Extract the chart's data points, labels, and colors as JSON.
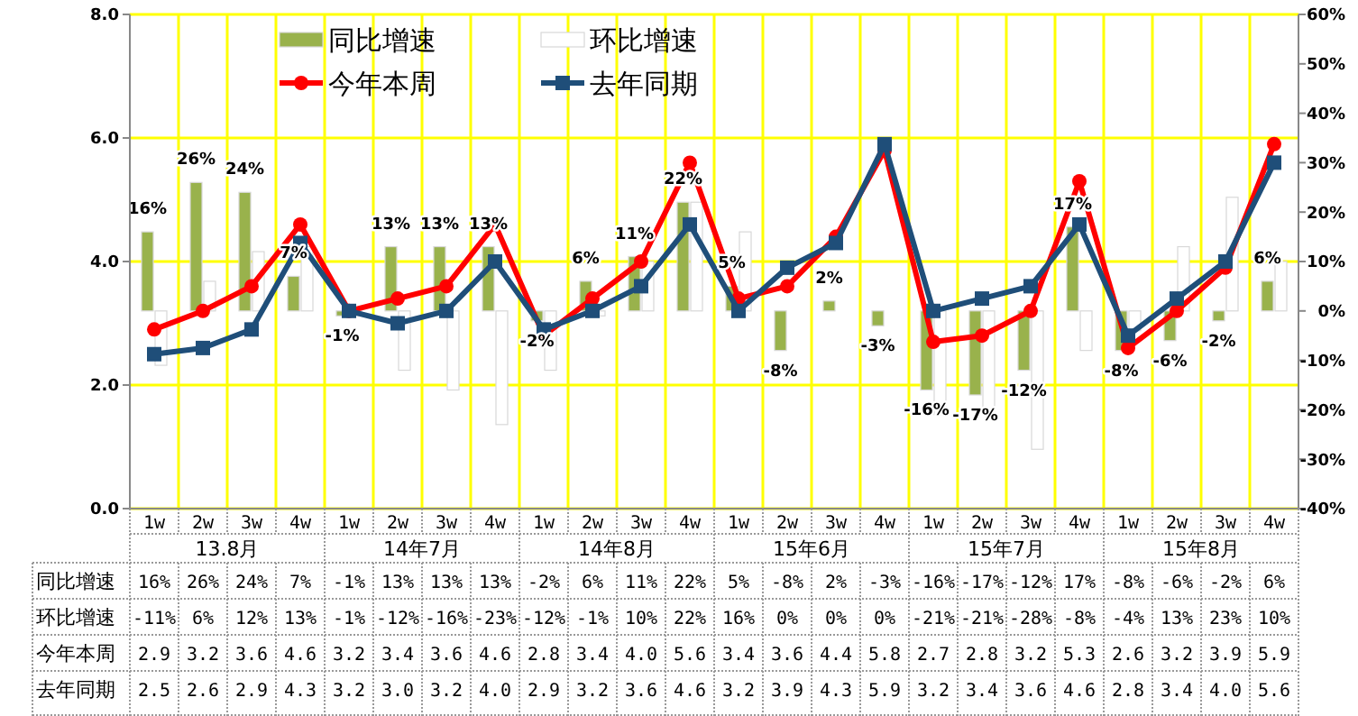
{
  "chart_data": {
    "type": "bar",
    "categories": [
      "1w",
      "2w",
      "3w",
      "4w",
      "1w",
      "2w",
      "3w",
      "4w",
      "1w",
      "2w",
      "3w",
      "4w",
      "1w",
      "2w",
      "3w",
      "4w",
      "1w",
      "2w",
      "3w",
      "4w",
      "1w",
      "2w",
      "3w",
      "4w"
    ],
    "annotations": [
      "13.8月",
      "14年7月",
      "14年8月",
      "15年6月",
      "15年7月",
      "15年8月"
    ],
    "series": [
      {
        "name": "同比增速",
        "axis": "y2",
        "color": "#99b24c",
        "values": [
          16,
          26,
          24,
          7,
          -1,
          13,
          13,
          13,
          -2,
          6,
          11,
          22,
          5,
          -8,
          2,
          -3,
          -16,
          -17,
          -12,
          17,
          -8,
          -6,
          -2,
          6
        ],
        "value_labels": [
          "16%",
          "26%",
          "24%",
          "7%",
          "-1%",
          "13%",
          "13%",
          "13%",
          "-2%",
          "6%",
          "11%",
          "22%",
          "5%",
          "-8%",
          "2%",
          "-3%",
          "-16%",
          "-17%",
          "-12%",
          "17%",
          "-8%",
          "-6%",
          "-2%",
          "6%"
        ]
      },
      {
        "name": "环比增速",
        "axis": "y2",
        "color": "#ffffff",
        "values": [
          -11,
          6,
          12,
          13,
          -1,
          -12,
          -16,
          -23,
          -12,
          -1,
          10,
          22,
          16,
          0,
          0,
          0,
          -21,
          -21,
          -28,
          -8,
          -4,
          13,
          23,
          10
        ],
        "value_labels": [
          "-11%",
          "6%",
          "12%",
          "13%",
          "-1%",
          "-12%",
          "-16%",
          "-23%",
          "-12%",
          "-1%",
          "10%",
          "22%",
          "16%",
          "0%",
          "0%",
          "0%",
          "-21%",
          "-21%",
          "-28%",
          "-8%",
          "-4%",
          "13%",
          "23%",
          "10%"
        ]
      },
      {
        "name": "今年本周",
        "type": "line",
        "marker": "circle",
        "color": "#ff0000",
        "values": [
          2.9,
          3.2,
          3.6,
          4.6,
          3.2,
          3.4,
          3.6,
          4.6,
          2.8,
          3.4,
          4.0,
          5.6,
          3.4,
          3.6,
          4.4,
          5.8,
          2.7,
          2.8,
          3.2,
          5.3,
          2.6,
          3.2,
          3.9,
          5.9
        ],
        "value_labels": [
          "2.9",
          "3.2",
          "3.6",
          "4.6",
          "3.2",
          "3.4",
          "3.6",
          "4.6",
          "2.8",
          "3.4",
          "4.0",
          "5.6",
          "3.4",
          "3.6",
          "4.4",
          "5.8",
          "2.7",
          "2.8",
          "3.2",
          "5.3",
          "2.6",
          "3.2",
          "3.9",
          "5.9"
        ]
      },
      {
        "name": "去年同期",
        "type": "line",
        "marker": "square",
        "color": "#1f4e79",
        "values": [
          2.5,
          2.6,
          2.9,
          4.3,
          3.2,
          3.0,
          3.2,
          4.0,
          2.9,
          3.2,
          3.6,
          4.6,
          3.2,
          3.9,
          4.3,
          5.9,
          3.2,
          3.4,
          3.6,
          4.6,
          2.8,
          3.4,
          4.0,
          5.6
        ],
        "value_labels": [
          "2.5",
          "2.6",
          "2.9",
          "4.3",
          "3.2",
          "3.0",
          "3.2",
          "4.0",
          "2.9",
          "3.2",
          "3.6",
          "4.6",
          "3.2",
          "3.9",
          "4.3",
          "5.9",
          "3.2",
          "3.4",
          "3.6",
          "4.6",
          "2.8",
          "3.4",
          "4.0",
          "5.6"
        ]
      }
    ],
    "ylim": [
      0,
      8
    ],
    "yticks": [
      {
        "value": 0,
        "label": "0.0"
      },
      {
        "value": 2,
        "label": "2.0"
      },
      {
        "value": 4,
        "label": "4.0"
      },
      {
        "value": 6,
        "label": "6.0"
      },
      {
        "value": 8,
        "label": "8.0"
      }
    ],
    "y2lim": [
      -40,
      60
    ],
    "y2ticks": [
      {
        "value": -40,
        "label": "-40%"
      },
      {
        "value": -30,
        "label": "-30%"
      },
      {
        "value": -20,
        "label": "-20%"
      },
      {
        "value": -10,
        "label": "-10%"
      },
      {
        "value": 0,
        "label": "0%"
      },
      {
        "value": 10,
        "label": "10%"
      },
      {
        "value": 20,
        "label": "20%"
      },
      {
        "value": 30,
        "label": "30%"
      },
      {
        "value": 40,
        "label": "40%"
      },
      {
        "value": 50,
        "label": "50%"
      },
      {
        "value": 60,
        "label": "60%"
      }
    ],
    "grid": true,
    "legend": "top",
    "data_labels": true
  }
}
